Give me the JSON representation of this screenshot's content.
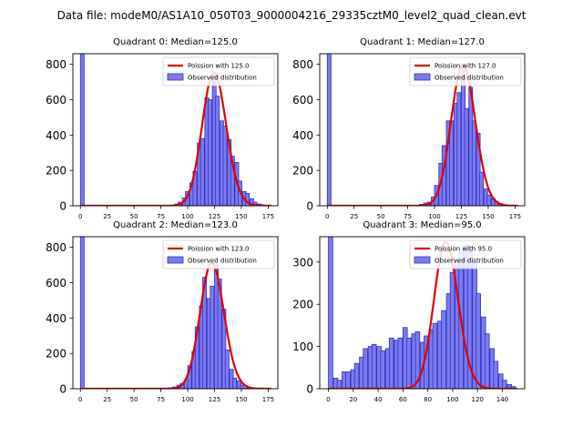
{
  "figure_title": "Data file: modeM0/AS1A10_050T03_9000004216_29335cztM0_level2_quad_clean.evt",
  "colors": {
    "bar": "#7b7bef",
    "bar_edge": "#3030c0",
    "fit": "#e00000",
    "axis": "#000000"
  },
  "chart_data": [
    {
      "type": "bar",
      "title": "Quadrant 0: Median=125.0",
      "xlim": [
        -7,
        184
      ],
      "ylim": [
        0,
        860
      ],
      "xticks": [
        0,
        25,
        50,
        75,
        100,
        125,
        150,
        175
      ],
      "yticks": [
        0,
        200,
        400,
        600,
        800
      ],
      "legend": [
        "Poission with 125.0",
        "Observed distribution"
      ],
      "legend_position": "top-right",
      "bin_width": 3.5,
      "bins_x": [
        0,
        84,
        88,
        91,
        95,
        98,
        102,
        105,
        109,
        112,
        116,
        119,
        123,
        126,
        130,
        133,
        137,
        140,
        144,
        147,
        151,
        154,
        158,
        161,
        165,
        168
      ],
      "bins_y": [
        860,
        3,
        10,
        20,
        45,
        80,
        130,
        195,
        355,
        380,
        610,
        600,
        740,
        620,
        480,
        450,
        375,
        280,
        245,
        140,
        80,
        70,
        40,
        20,
        10,
        5
      ],
      "fit_mu": 125.0
    },
    {
      "type": "bar",
      "title": "Quadrant 1: Median=127.0",
      "xlim": [
        -7,
        184
      ],
      "ylim": [
        0,
        860
      ],
      "xticks": [
        0,
        25,
        50,
        75,
        100,
        125,
        150,
        175
      ],
      "yticks": [
        0,
        200,
        400,
        600,
        800
      ],
      "legend": [
        "Poission with 127.0",
        "Observed distribution"
      ],
      "legend_position": "top-right",
      "bin_width": 3.5,
      "bins_x": [
        0,
        82,
        86,
        90,
        93,
        97,
        100,
        104,
        107,
        111,
        114,
        118,
        121,
        125,
        128,
        132,
        135,
        139,
        142,
        146,
        149,
        153,
        156,
        160,
        163
      ],
      "bins_y": [
        860,
        3,
        8,
        15,
        20,
        50,
        115,
        240,
        340,
        480,
        480,
        580,
        640,
        780,
        550,
        670,
        480,
        410,
        190,
        95,
        60,
        40,
        25,
        12,
        5
      ],
      "fit_mu": 127.0
    },
    {
      "type": "bar",
      "title": "Quadrant 2: Median=123.0",
      "xlim": [
        -7,
        184
      ],
      "ylim": [
        0,
        860
      ],
      "xticks": [
        0,
        25,
        50,
        75,
        100,
        125,
        150,
        175
      ],
      "yticks": [
        0,
        200,
        400,
        600,
        800
      ],
      "legend": [
        "Poission with 123.0",
        "Observed distribution"
      ],
      "legend_position": "top-right",
      "bin_width": 3.5,
      "bins_x": [
        0,
        82,
        86,
        90,
        93,
        97,
        100,
        104,
        107,
        111,
        114,
        118,
        121,
        125,
        128,
        132,
        135,
        139,
        142,
        146,
        149,
        153
      ],
      "bins_y": [
        860,
        5,
        10,
        20,
        30,
        50,
        130,
        210,
        350,
        470,
        630,
        510,
        580,
        700,
        620,
        450,
        220,
        110,
        60,
        45,
        20,
        5
      ],
      "fit_mu": 123.0
    },
    {
      "type": "bar",
      "title": "Quadrant 3: Median=95.0",
      "xlim": [
        -7,
        158
      ],
      "ylim": [
        0,
        360
      ],
      "xticks": [
        0,
        20,
        40,
        60,
        80,
        100,
        120,
        140
      ],
      "yticks": [
        0,
        100,
        200,
        300
      ],
      "legend": [
        "Poission with 95.0",
        "Observed distribution"
      ],
      "legend_position": "top-right",
      "bin_width": 3.5,
      "bins_x": [
        0,
        4,
        7,
        11,
        14,
        18,
        21,
        25,
        28,
        32,
        35,
        39,
        42,
        46,
        49,
        53,
        56,
        60,
        63,
        67,
        70,
        74,
        77,
        81,
        84,
        88,
        91,
        95,
        98,
        102,
        105,
        109,
        112,
        116,
        119,
        123,
        126,
        130,
        133,
        137,
        140,
        144,
        147
      ],
      "bins_y": [
        360,
        25,
        20,
        40,
        40,
        45,
        60,
        75,
        95,
        100,
        105,
        100,
        90,
        95,
        120,
        115,
        120,
        145,
        120,
        130,
        135,
        110,
        125,
        140,
        155,
        160,
        185,
        225,
        275,
        305,
        325,
        340,
        335,
        300,
        225,
        170,
        130,
        95,
        65,
        35,
        20,
        10,
        5
      ],
      "fit_mu": 95.0
    }
  ]
}
